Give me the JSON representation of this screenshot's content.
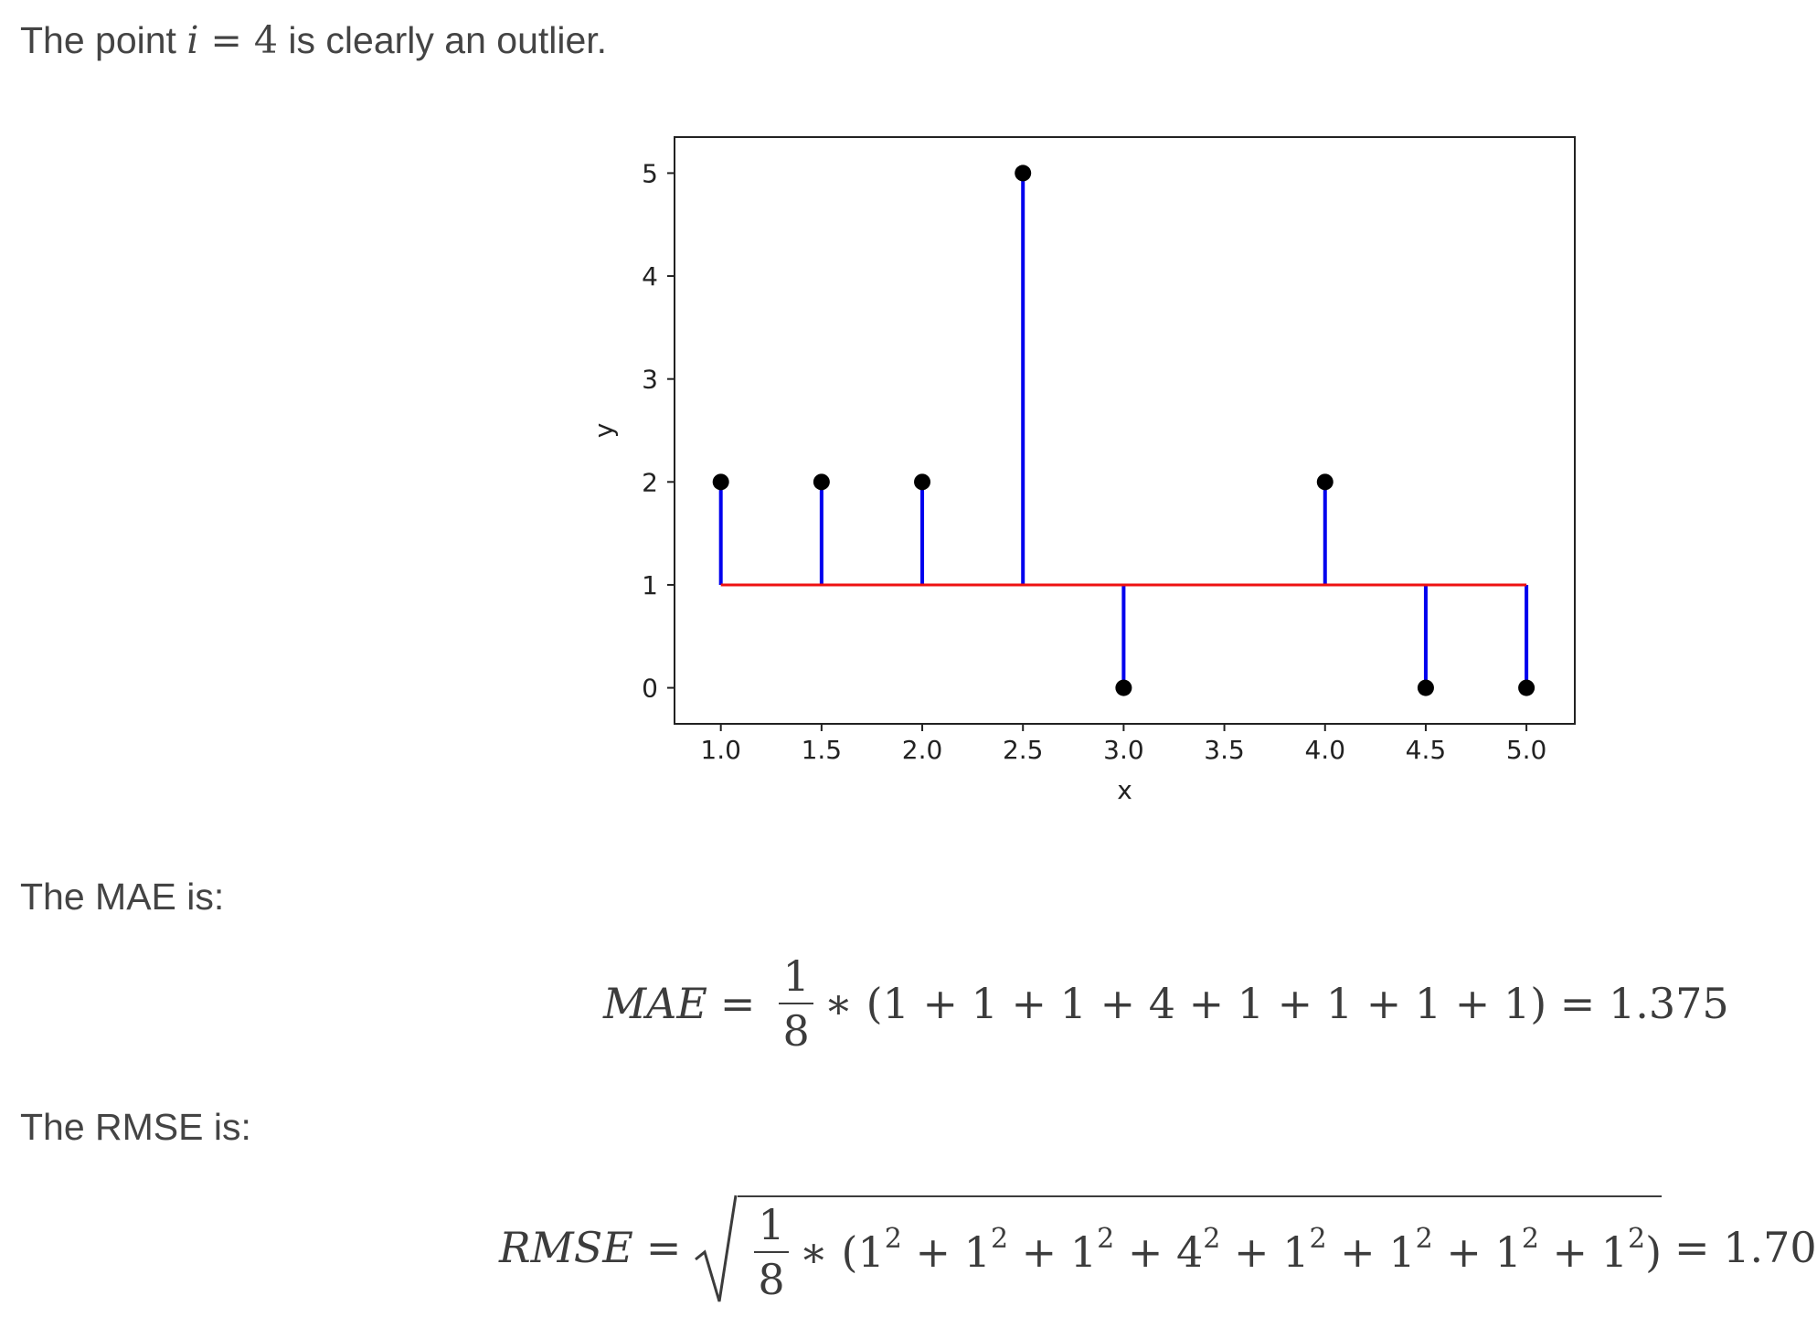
{
  "intro": {
    "before": "The point",
    "math_var": "i",
    "math_eq": " = 4",
    "after": "is clearly an outlier."
  },
  "mae_label": "The MAE is:",
  "mae_equation": {
    "lhs": "MAE",
    "frac_num": "1",
    "frac_den": "8",
    "body": "∗ (1 + 1 + 1 + 4 + 1 + 1 + 1 + 1) = 1.375"
  },
  "rmse_label": "The RMSE is:",
  "rmse_equation": {
    "lhs": "RMSE",
    "frac_num": "1",
    "frac_den": "8",
    "terms": [
      "1",
      "1",
      "1",
      "4",
      "1",
      "1",
      "1",
      "1"
    ],
    "exponent": "2",
    "result": "= 1.70"
  },
  "chart_data": {
    "type": "scatter",
    "xlabel": "x",
    "ylabel": "y",
    "xlim": [
      0.77,
      5.24
    ],
    "ylim": [
      -0.35,
      5.35
    ],
    "xticks": [
      "1.0",
      "1.5",
      "2.0",
      "2.5",
      "3.0",
      "3.5",
      "4.0",
      "4.5",
      "5.0"
    ],
    "yticks": [
      "0",
      "1",
      "2",
      "3",
      "4",
      "5"
    ],
    "points": [
      {
        "x": 1.0,
        "y": 2
      },
      {
        "x": 1.5,
        "y": 2
      },
      {
        "x": 2.0,
        "y": 2
      },
      {
        "x": 2.5,
        "y": 5
      },
      {
        "x": 3.0,
        "y": 0
      },
      {
        "x": 4.0,
        "y": 2
      },
      {
        "x": 4.5,
        "y": 0
      },
      {
        "x": 5.0,
        "y": 0
      }
    ],
    "fit_line": {
      "x_start": 1.0,
      "x_end": 5.0,
      "y": 1
    },
    "colors": {
      "points": "#000000",
      "residuals": "#0000ee",
      "fit": "#ee1111",
      "axes": "#222222"
    }
  }
}
